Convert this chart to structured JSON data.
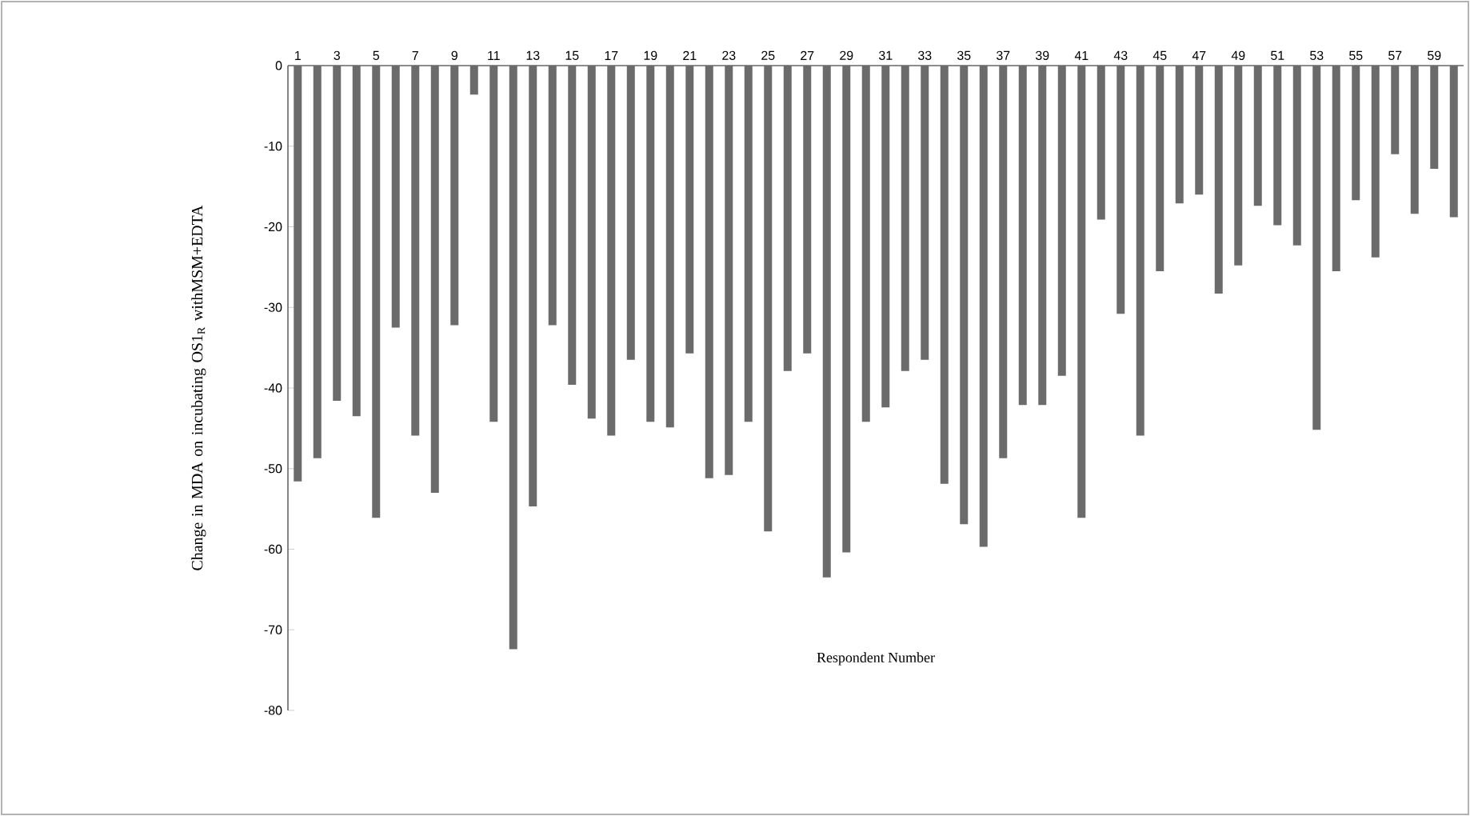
{
  "chart_data": {
    "type": "bar",
    "xlabel": "Respondent Number",
    "ylabel": "Change in MDA on incubating OS1$_{R}$ withMSM+EDTA",
    "categories": [
      "1",
      null,
      "3",
      null,
      "5",
      null,
      "7",
      null,
      "9",
      null,
      "11",
      null,
      "13",
      null,
      "15",
      null,
      "17",
      null,
      "19",
      null,
      "21",
      null,
      "23",
      null,
      "25",
      null,
      "27",
      null,
      "29",
      null,
      "31",
      null,
      "33",
      null,
      "35",
      null,
      "37",
      null,
      "39",
      null,
      "41",
      null,
      "43",
      null,
      "45",
      null,
      "47",
      null,
      "49",
      null,
      "51",
      null,
      "53",
      null,
      "55",
      null,
      "57",
      null,
      "59",
      null
    ],
    "values": [
      -51.6,
      -48.7,
      -41.6,
      -43.5,
      -56.1,
      -32.5,
      -45.9,
      -53.0,
      -32.2,
      -3.6,
      -44.2,
      -72.4,
      -54.7,
      -32.2,
      -39.6,
      -43.8,
      -45.9,
      -36.5,
      -44.2,
      -44.9,
      -35.7,
      -51.2,
      -50.8,
      -44.2,
      -57.8,
      -37.9,
      -35.7,
      -63.5,
      -60.4,
      -44.2,
      -42.4,
      -37.9,
      -36.5,
      -51.9,
      -56.9,
      -59.7,
      -48.7,
      -42.1,
      -42.1,
      -38.5,
      -56.1,
      -19.1,
      -30.8,
      -45.9,
      -25.5,
      -17.1,
      -16.0,
      -28.3,
      -24.8,
      -17.4,
      -19.8,
      -22.3,
      -45.2,
      -25.5,
      -16.7,
      -23.8,
      -11.0,
      -18.4,
      -12.8,
      -18.8
    ],
    "color": "#6b6b6b",
    "ylim": [
      -80,
      0
    ],
    "yticks": [
      0,
      -10,
      -20,
      -30,
      -40,
      -50,
      -60,
      -70,
      -80
    ],
    "grid": false
  }
}
